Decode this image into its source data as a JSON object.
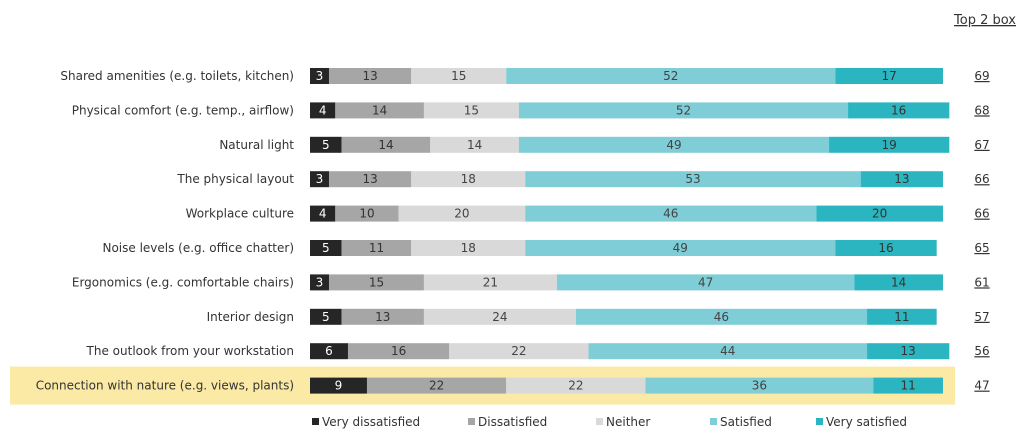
{
  "chart_data": {
    "type": "bar",
    "orientation": "horizontal",
    "stacked": true,
    "top2_header": "Top 2 box",
    "categories": [
      "Shared amenities (e.g. toilets, kitchen)",
      "Physical comfort (e.g. temp., airflow)",
      "Natural light",
      "The physical layout",
      "Workplace culture",
      "Noise levels (e.g. office chatter)",
      "Ergonomics (e.g. comfortable chairs)",
      "Interior design",
      "The outlook from your workstation",
      "Connection with nature (e.g. views, plants)"
    ],
    "highlighted_category": "Connection with nature (e.g. views, plants)",
    "series": [
      {
        "name": "Very dissatisfied",
        "color": "#262626",
        "label_color": "#ffffff",
        "values": [
          3,
          4,
          5,
          3,
          4,
          5,
          3,
          5,
          6,
          9
        ]
      },
      {
        "name": "Dissatisfied",
        "color": "#a6a6a6",
        "label_color": "#333333",
        "values": [
          13,
          14,
          14,
          13,
          10,
          11,
          15,
          13,
          16,
          22
        ]
      },
      {
        "name": "Neither",
        "color": "#d9d9d9",
        "label_color": "#444444",
        "values": [
          15,
          15,
          14,
          18,
          20,
          18,
          21,
          24,
          22,
          22
        ]
      },
      {
        "name": "Satisfied",
        "color": "#7fcdd6",
        "label_color": "#444444",
        "values": [
          52,
          52,
          49,
          53,
          46,
          49,
          47,
          46,
          44,
          36
        ]
      },
      {
        "name": "Very satisfied",
        "color": "#2bb5c0",
        "label_color": "#333333",
        "values": [
          17,
          16,
          19,
          13,
          20,
          16,
          14,
          11,
          13,
          11
        ]
      }
    ],
    "top2_box": [
      69,
      68,
      67,
      66,
      66,
      65,
      61,
      57,
      56,
      47
    ],
    "xlim": [
      0,
      100
    ],
    "legend_position": "bottom",
    "grid": false,
    "highlight_color": "#fbeaa5"
  }
}
